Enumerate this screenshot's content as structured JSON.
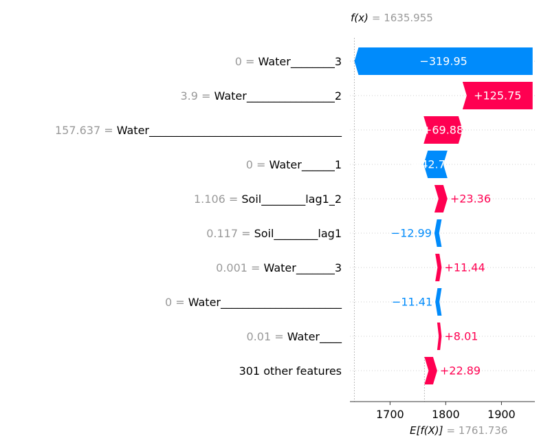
{
  "chart_data": {
    "type": "waterfall",
    "fx_label": "f(x)",
    "fx_value": "= 1635.955",
    "efx_label": "E[f(X)]",
    "efx_value": "= 1761.736",
    "fx": 1635.955,
    "base": 1761.736,
    "xlim": [
      1628,
      1960
    ],
    "xticks": [
      1700,
      1800,
      1900
    ],
    "xtick_labels": [
      "1700",
      "1800",
      "1900"
    ],
    "positive_color": "#ff0051",
    "negative_color": "#008bfb",
    "features": [
      {
        "value_text": "0 =",
        "name": "Water________3",
        "contribution": -319.95,
        "label": "−319.95"
      },
      {
        "value_text": "3.9 =",
        "name": "Water________________2",
        "contribution": 125.75,
        "label": "+125.75"
      },
      {
        "value_text": "157.637 =",
        "name": "Water___________________________________",
        "contribution": 69.88,
        "label": "+69.88"
      },
      {
        "value_text": "0 =",
        "name": "Water______1",
        "contribution": -42.7,
        "label": "−42.7"
      },
      {
        "value_text": "1.106 =",
        "name": "Soil________lag1_2",
        "contribution": 23.36,
        "label": "+23.36"
      },
      {
        "value_text": "0.117 =",
        "name": "Soil________lag1",
        "contribution": -12.99,
        "label": "−12.99"
      },
      {
        "value_text": "0.001 =",
        "name": "Water_______3",
        "contribution": 11.44,
        "label": "+11.44"
      },
      {
        "value_text": "0 =",
        "name": "Water______________________",
        "contribution": -11.41,
        "label": "−11.41"
      },
      {
        "value_text": "0.01 =",
        "name": "Water____",
        "contribution": 8.01,
        "label": "+8.01"
      },
      {
        "value_text": "",
        "name": "301 other features",
        "contribution": 22.89,
        "label": "+22.89"
      }
    ]
  }
}
